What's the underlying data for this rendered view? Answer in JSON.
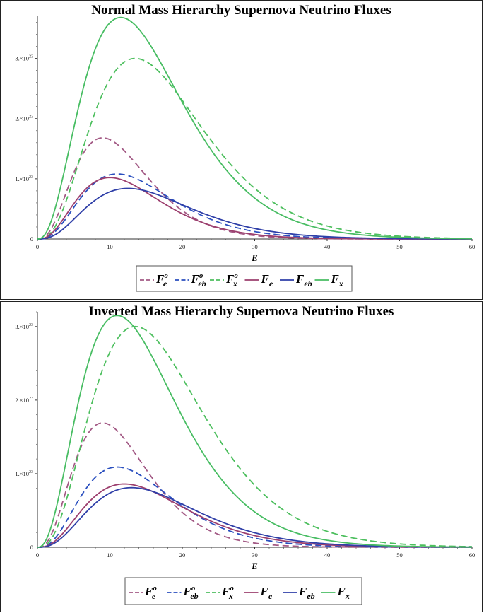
{
  "chart_data": [
    {
      "type": "line",
      "title": "Normal Mass Hierarchy Supernova Neutrino Fluxes",
      "xlabel": "E",
      "ylabel": "",
      "xlim": [
        0,
        60
      ],
      "ylim": [
        0,
        3.7e+23
      ],
      "xticks": [
        "0",
        "10",
        "20",
        "30",
        "40",
        "50",
        "60"
      ],
      "yticks": [
        {
          "mant": "1.×10",
          "exp": "23",
          "value": 1e+23
        },
        {
          "mant": "2.×10",
          "exp": "23",
          "value": 2e+23
        },
        {
          "mant": "3.×10",
          "exp": "23",
          "value": 3e+23
        }
      ],
      "yzero_label": "0",
      "grid": false,
      "legend_position": "bottom",
      "series": [
        {
          "name": "F_e^o",
          "sym": "F",
          "sub": "e",
          "sup": "o",
          "color": "#a35a85",
          "dash": true,
          "peak_x": 9.0,
          "peak_y": 1.68e+23,
          "alpha": 3.0
        },
        {
          "name": "F_eb^o",
          "sym": "F",
          "sub": "eb",
          "sup": "o",
          "color": "#2a4fbf",
          "dash": true,
          "peak_x": 11.0,
          "peak_y": 1.08e+23,
          "alpha": 3.0
        },
        {
          "name": "F_x^o",
          "sym": "F",
          "sub": "x",
          "sup": "o",
          "color": "#4dbf5e",
          "dash": true,
          "peak_x": 13.5,
          "peak_y": 3e+23,
          "alpha": 3.0
        },
        {
          "name": "F_e",
          "sym": "F",
          "sub": "e",
          "sup": "",
          "color": "#9c3f6e",
          "dash": false,
          "peak_x": 10.0,
          "peak_y": 1.02e+23,
          "alpha": 2.9
        },
        {
          "name": "F_eb",
          "sym": "F",
          "sub": "eb",
          "sup": "",
          "color": "#2f3fa8",
          "dash": false,
          "peak_x": 12.5,
          "peak_y": 8.4e+22,
          "alpha": 3.0
        },
        {
          "name": "F_x",
          "sym": "F",
          "sub": "x",
          "sup": "",
          "color": "#48bd63",
          "dash": false,
          "peak_x": 11.5,
          "peak_y": 3.68e+23,
          "alpha": 2.6
        }
      ]
    },
    {
      "type": "line",
      "title": "Inverted Mass Hierarchy Supernova Neutrino Fluxes",
      "xlabel": "E",
      "ylabel": "",
      "xlim": [
        0,
        60
      ],
      "ylim": [
        0,
        3.2e+23
      ],
      "xticks": [
        "0",
        "10",
        "20",
        "30",
        "40",
        "50",
        "60"
      ],
      "yticks": [
        {
          "mant": "1.×10",
          "exp": "23",
          "value": 1e+23
        },
        {
          "mant": "2.×10",
          "exp": "23",
          "value": 2e+23
        },
        {
          "mant": "3.×10",
          "exp": "23",
          "value": 3e+23
        }
      ],
      "yzero_label": "0",
      "grid": false,
      "legend_position": "bottom",
      "series": [
        {
          "name": "F_e^o",
          "sym": "F",
          "sub": "e",
          "sup": "o",
          "color": "#a35a85",
          "dash": true,
          "peak_x": 9.0,
          "peak_y": 1.69e+23,
          "alpha": 3.0
        },
        {
          "name": "F_eb^o",
          "sym": "F",
          "sub": "eb",
          "sup": "o",
          "color": "#2a4fbf",
          "dash": true,
          "peak_x": 11.0,
          "peak_y": 1.09e+23,
          "alpha": 3.0
        },
        {
          "name": "F_x^o",
          "sym": "F",
          "sub": "x",
          "sup": "o",
          "color": "#4dbf5e",
          "dash": true,
          "peak_x": 13.5,
          "peak_y": 3e+23,
          "alpha": 3.0
        },
        {
          "name": "F_e",
          "sym": "F",
          "sub": "e",
          "sup": "",
          "color": "#9c3f6e",
          "dash": false,
          "peak_x": 12.0,
          "peak_y": 8.6e+22,
          "alpha": 2.9
        },
        {
          "name": "F_eb",
          "sym": "F",
          "sub": "eb",
          "sup": "",
          "color": "#2f3fa8",
          "dash": false,
          "peak_x": 13.0,
          "peak_y": 8.1e+22,
          "alpha": 3.0
        },
        {
          "name": "F_x",
          "sym": "F",
          "sub": "x",
          "sup": "",
          "color": "#48bd63",
          "dash": false,
          "peak_x": 11.0,
          "peak_y": 3.15e+23,
          "alpha": 2.6
        }
      ]
    }
  ]
}
